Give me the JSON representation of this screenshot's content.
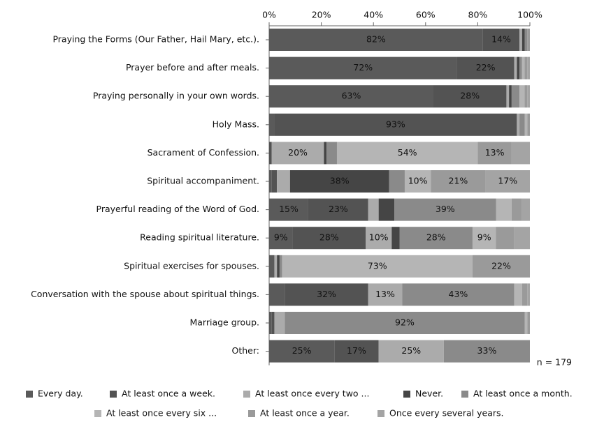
{
  "chart_data": {
    "type": "stacked-bar-horizontal",
    "categories": [
      "Praying the Forms (Our Father, Hail Mary, etc.).",
      "Prayer before and after meals.",
      "Praying personally in your own words.",
      "Holy Mass.",
      "Sacrament of Confession.",
      "Spiritual accompaniment.",
      "Prayerful reading of the Word of God.",
      "Reading spiritual literature.",
      "Spiritual exercises for spouses.",
      "Conversation with the spouse about spiritual things.",
      "Marriage group.",
      "Other:"
    ],
    "series": [
      {
        "name": "Every day.",
        "color": "#5a5a5a",
        "values": [
          82,
          72,
          63,
          2,
          0,
          1,
          15,
          9,
          2,
          6,
          1,
          25
        ],
        "value_labels": [
          "82%",
          "72%",
          "63%",
          null,
          null,
          null,
          "15%",
          "9%",
          null,
          null,
          null,
          "25%"
        ]
      },
      {
        "name": "At least once a week.",
        "color": "#535353",
        "values": [
          14,
          22,
          28,
          93,
          1,
          2,
          23,
          28,
          0,
          32,
          1,
          17
        ],
        "value_labels": [
          "14%",
          "22%",
          "28%",
          "93%",
          null,
          null,
          "23%",
          "28%",
          null,
          "32%",
          null,
          "17%"
        ]
      },
      {
        "name": "At least once every two ...",
        "color": "#ababab",
        "values": [
          1,
          1,
          1,
          1,
          20,
          5,
          4,
          10,
          1,
          13,
          4,
          25
        ],
        "value_labels": [
          null,
          null,
          null,
          null,
          "20%",
          null,
          null,
          "10%",
          null,
          "13%",
          null,
          "25%"
        ]
      },
      {
        "name": "Never.",
        "color": "#454545",
        "values": [
          1,
          1,
          1,
          0,
          1,
          38,
          6,
          3,
          1,
          0,
          0,
          0
        ],
        "value_labels": [
          null,
          null,
          null,
          null,
          null,
          "38%",
          null,
          null,
          null,
          null,
          null,
          null
        ]
      },
      {
        "name": "At least once a month.",
        "color": "#8a8a8a",
        "values": [
          1,
          1,
          3,
          2,
          4,
          6,
          39,
          28,
          1,
          43,
          92,
          33
        ],
        "value_labels": [
          null,
          null,
          null,
          null,
          null,
          null,
          "39%",
          "28%",
          null,
          "43%",
          "92%",
          "33%"
        ]
      },
      {
        "name": "At least once every six ...",
        "color": "#b5b5b5",
        "values": [
          0,
          1,
          2,
          1,
          54,
          10,
          6,
          9,
          73,
          3,
          1,
          0
        ],
        "value_labels": [
          null,
          null,
          null,
          null,
          "54%",
          "10%",
          null,
          "9%",
          "73%",
          null,
          null,
          null
        ]
      },
      {
        "name": "At least once a year.",
        "color": "#9a9a9a",
        "values": [
          1,
          1,
          1,
          1,
          13,
          21,
          4,
          7,
          22,
          2,
          1,
          0
        ],
        "value_labels": [
          null,
          null,
          null,
          null,
          "13%",
          "21%",
          null,
          null,
          "22%",
          null,
          null,
          null
        ]
      },
      {
        "name": "Once every several years.",
        "color": "#a4a4a4",
        "values": [
          0,
          1,
          1,
          0,
          7,
          17,
          3,
          6,
          0,
          1,
          0,
          0
        ],
        "value_labels": [
          null,
          null,
          null,
          null,
          null,
          "17%",
          null,
          null,
          null,
          null,
          null,
          null
        ]
      }
    ],
    "xlim": [
      0,
      100
    ],
    "xticks": [
      {
        "value": 0,
        "label": "0%"
      },
      {
        "value": 20,
        "label": "20%"
      },
      {
        "value": 40,
        "label": "40%"
      },
      {
        "value": 60,
        "label": "60%"
      },
      {
        "value": 80,
        "label": "80%"
      },
      {
        "value": 100,
        "label": "100%"
      }
    ],
    "annotation": "n = 179"
  }
}
